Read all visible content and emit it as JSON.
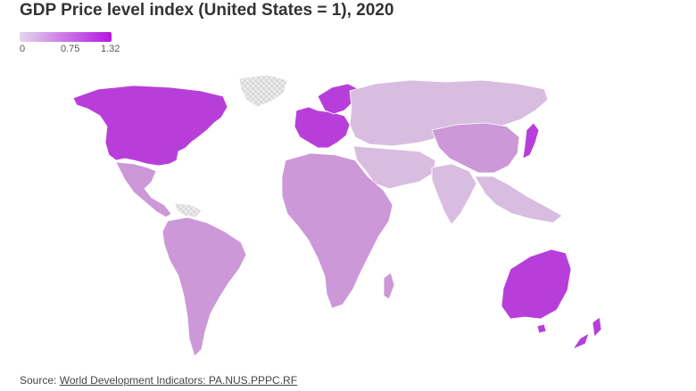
{
  "title": "GDP Price level index (United States = 1), 2020",
  "legend": {
    "tick_min": "0",
    "tick_mid": "0.75",
    "tick_max": "1.32",
    "color_low": "#e3d6ec",
    "color_high": "#b317e0"
  },
  "colors": {
    "no_data": "#e6e6e6",
    "low": "#d9bde0",
    "mid": "#cc98d8",
    "high": "#b83ed9",
    "border": "#ffffff"
  },
  "regions": {
    "north_america": {
      "value_level": "high"
    },
    "mexico_central_america": {
      "value_level": "mid"
    },
    "greenland": {
      "value_level": "no_data"
    },
    "south_america": {
      "value_level": "mid"
    },
    "europe_west": {
      "value_level": "high"
    },
    "scandinavia": {
      "value_level": "high"
    },
    "russia_central_asia": {
      "value_level": "low"
    },
    "middle_east": {
      "value_level": "low"
    },
    "africa": {
      "value_level": "mid"
    },
    "south_asia": {
      "value_level": "low"
    },
    "china": {
      "value_level": "mid"
    },
    "japan": {
      "value_level": "high"
    },
    "southeast_asia": {
      "value_level": "low"
    },
    "australia": {
      "value_level": "high"
    },
    "new_zealand": {
      "value_level": "high"
    }
  },
  "source": {
    "prefix": "Source: ",
    "link_text": "World Development Indicators: PA.NUS.PPPC.RF"
  }
}
